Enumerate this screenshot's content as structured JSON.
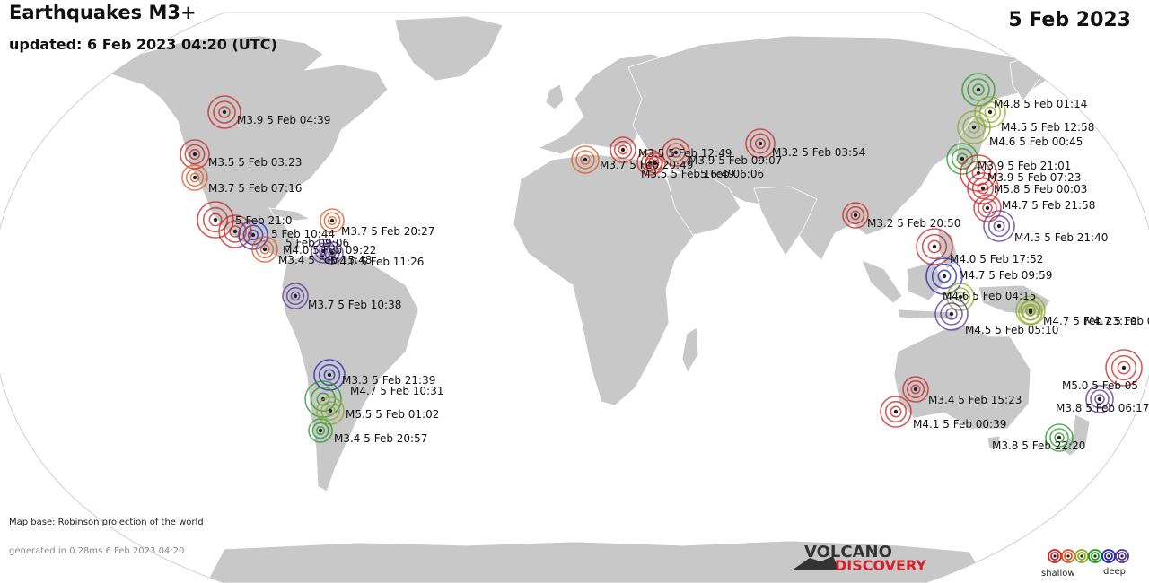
{
  "header": {
    "title": "Earthquakes M3+",
    "updated": "updated:  6 Feb 2023 04:20 (UTC)",
    "date": "5 Feb 2023"
  },
  "footer": {
    "map_base": "Map base: Robinson projection of the world",
    "generated": "generated in 0.28ms  6 Feb 2023 04:20"
  },
  "logo": {
    "line1": "VOLCANO",
    "line2": "DISCOVERY"
  },
  "legend": {
    "shallow": "shallow",
    "deep": "deep",
    "colors": [
      "#cc2222",
      "#dd5522",
      "#88aa22",
      "#229922",
      "#2222bb",
      "#553399"
    ]
  },
  "earthquakes": [
    {
      "label": "M3.9   5 Feb 04:39",
      "color": "#cc2222"
    },
    {
      "label": "M3.5   5 Feb 03:23",
      "color": "#cc2222"
    },
    {
      "label": "M3.7   5 Feb 07:16",
      "color": "#dd5522"
    },
    {
      "label": "M3.7   5 Feb 20:27",
      "color": "#dd5522"
    },
    {
      "label": "5 Feb 21:0",
      "color": "#cc2222"
    },
    {
      "label": "5 Feb 10:44",
      "color": "#2222bb"
    },
    {
      "label": "5 Feb 09:06",
      "color": "#cc2222"
    },
    {
      "label": "M4.0   5 Feb 09:22",
      "color": "#553399"
    },
    {
      "label": "M3.4   5 Feb 15:48",
      "color": "#dd5522"
    },
    {
      "label": "M4.0   5 Feb 11:26",
      "color": "#553399"
    },
    {
      "label": "M3.7   5 Feb 10:38",
      "color": "#553399"
    },
    {
      "label": "M3.3   5 Feb 21:39",
      "color": "#2222bb"
    },
    {
      "label": "M4.7   5 Feb 10:31",
      "color": "#229922"
    },
    {
      "label": "M5.5   5 Feb 01:02",
      "color": "#88aa22"
    },
    {
      "label": "M3.4   5 Feb 20:57",
      "color": "#229922"
    },
    {
      "label": "M3.7   5 Feb 20:49",
      "color": "#dd5522"
    },
    {
      "label": "M3.5   5 Feb 16:49",
      "color": "#cc2222"
    },
    {
      "label": "M3.5   5 Feb 12:49",
      "color": "#cc2222"
    },
    {
      "label": "M3.9   5 Feb 09:07",
      "color": "#cc2222"
    },
    {
      "label": "5 Feb 06:06",
      "color": "#cc2222"
    },
    {
      "label": "M3.2   5 Feb 03:54",
      "color": "#cc2222"
    },
    {
      "label": "M3.2   5 Feb 20:50",
      "color": "#cc2222"
    },
    {
      "label": "M4.8   5 Feb 01:14",
      "color": "#229922"
    },
    {
      "label": "M4.5   5 Feb 12:58",
      "color": "#88aa22"
    },
    {
      "label": "M4.6   5 Feb 00:45",
      "color": "#88aa22"
    },
    {
      "label": "M3.9   5 Feb 21:01",
      "color": "#229922"
    },
    {
      "label": "M3.9   5 Feb 07:23",
      "color": "#cc2222"
    },
    {
      "label": "M5.8   5 Feb 00:03",
      "color": "#cc2222"
    },
    {
      "label": "M4.7   5 Feb 21:58",
      "color": "#cc2222"
    },
    {
      "label": "M4.3   5 Feb 21:40",
      "color": "#553399"
    },
    {
      "label": "M4.0   5 Feb 17:52",
      "color": "#cc2222"
    },
    {
      "label": "M4.7   5 Feb 09:59",
      "color": "#2222bb"
    },
    {
      "label": "M4.6   5 Feb 04:15",
      "color": "#88aa22"
    },
    {
      "label": "M4.7   5 Feb 23:19",
      "color": "#88aa22"
    },
    {
      "label": "M4.7   5 Feb 04:40",
      "color": "#88aa22"
    },
    {
      "label": "M4.5   5 Feb 05:10",
      "color": "#553399"
    },
    {
      "label": "M3.4   5 Feb 15:23",
      "color": "#cc2222"
    },
    {
      "label": "M4.1   5 Feb 00:39",
      "color": "#cc2222"
    },
    {
      "label": "M5.0   5 Feb 05",
      "color": "#cc2222"
    },
    {
      "label": "M3.8   5 Feb 06:17",
      "color": "#553399"
    },
    {
      "label": "M3.8   5 Feb 22:20",
      "color": "#229922"
    }
  ]
}
